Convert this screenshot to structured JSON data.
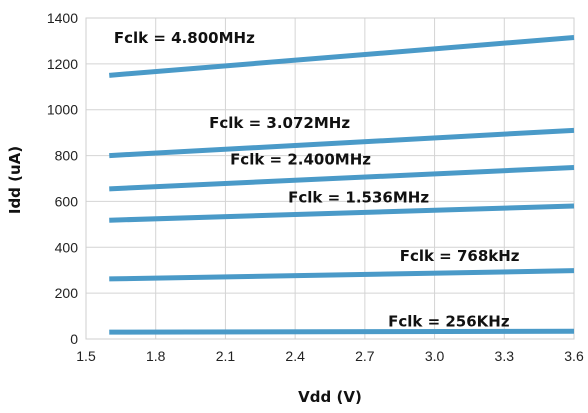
{
  "chart_data": {
    "type": "line",
    "title": "",
    "xlabel": "Vdd (V)",
    "ylabel": "Idd (uA)",
    "xlim": [
      1.5,
      3.6
    ],
    "ylim": [
      0,
      1400
    ],
    "x_ticks": [
      "1.5",
      "1.8",
      "2.1",
      "2.4",
      "2.7",
      "3.0",
      "3.3",
      "3.6"
    ],
    "y_ticks": [
      "0",
      "200",
      "400",
      "600",
      "800",
      "1000",
      "1200",
      "1400"
    ],
    "grid": true,
    "line_color": "#4a9ac8",
    "series": [
      {
        "name": "Fclk = 4.800MHz",
        "x": [
          1.6,
          3.6
        ],
        "y": [
          1150,
          1315
        ]
      },
      {
        "name": "Fclk = 3.072MHz",
        "x": [
          1.6,
          3.6
        ],
        "y": [
          800,
          910
        ]
      },
      {
        "name": "Fclk = 2.400MHz",
        "x": [
          1.6,
          3.6
        ],
        "y": [
          655,
          748
        ]
      },
      {
        "name": "Fclk = 1.536MHz",
        "x": [
          1.6,
          3.6
        ],
        "y": [
          518,
          580
        ]
      },
      {
        "name": "Fclk = 768kHz",
        "x": [
          1.6,
          3.6
        ],
        "y": [
          262,
          298
        ]
      },
      {
        "name": "Fclk = 256KHz",
        "x": [
          1.6,
          3.6
        ],
        "y": [
          30,
          34
        ]
      }
    ]
  }
}
